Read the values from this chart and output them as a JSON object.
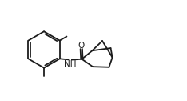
{
  "background_color": "#ffffff",
  "line_color": "#1c1c1c",
  "line_width": 1.3,
  "font_size": 7.5,
  "figsize": [
    2.34,
    1.26
  ],
  "dpi": 100,
  "xlim": [
    0,
    11.0
  ],
  "ylim": [
    0.0,
    6.0
  ]
}
